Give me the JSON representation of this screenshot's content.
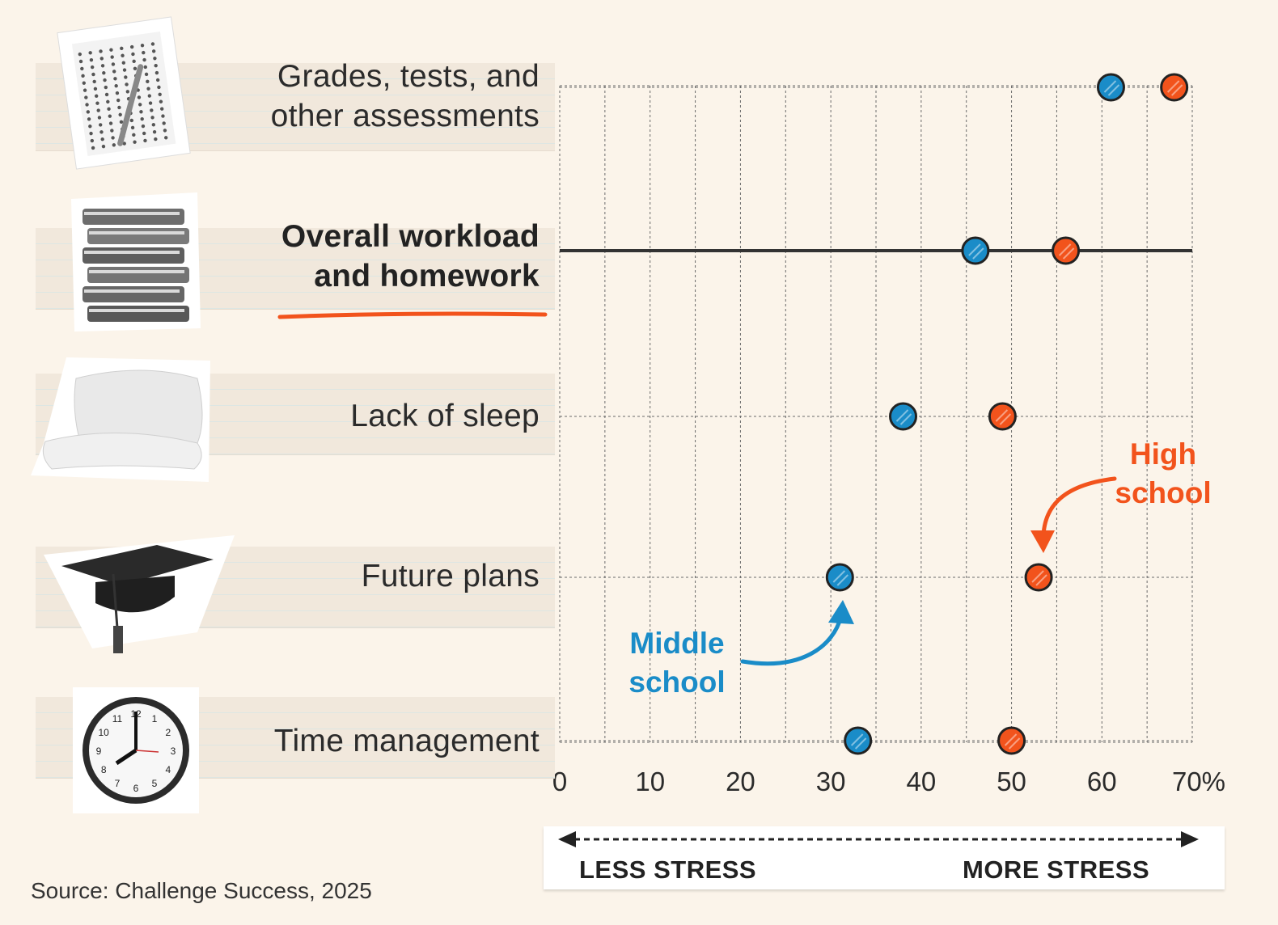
{
  "chart_data": {
    "type": "dot",
    "categories": [
      "Grades, tests, and other assessments",
      "Overall workload and homework",
      "Lack of sleep",
      "Future plans",
      "Time management"
    ],
    "category_lines": [
      [
        "Grades, tests, and",
        "other assessments"
      ],
      [
        "Overall workload",
        "and homework"
      ],
      [
        "Lack of sleep"
      ],
      [
        "Future plans"
      ],
      [
        "Time management"
      ]
    ],
    "highlighted_category": "Overall workload and homework",
    "series": [
      {
        "name": "Middle school",
        "label_lines": [
          "Middle",
          "school"
        ],
        "color": "#1a8cc8",
        "values": [
          61,
          46,
          38,
          31,
          33
        ]
      },
      {
        "name": "High school",
        "label_lines": [
          "High",
          "school"
        ],
        "color": "#f2531c",
        "values": [
          68,
          56,
          49,
          53,
          50
        ]
      }
    ],
    "xlim": [
      0,
      70
    ],
    "x_ticks": [
      "0",
      "10",
      "20",
      "30",
      "40",
      "50",
      "60",
      "70%"
    ],
    "grid": true,
    "axis_direction": {
      "left": "LESS STRESS",
      "right": "MORE STRESS"
    },
    "source": "Source: Challenge Success, 2025"
  },
  "icons": [
    "answer-sheet-icon",
    "book-stack-icon",
    "pillows-icon",
    "graduation-cap-icon",
    "wall-clock-icon"
  ],
  "colors": {
    "background": "#fbf4ea",
    "middle": "#1a8cc8",
    "high": "#f2531c",
    "text": "#2b2b2b"
  }
}
